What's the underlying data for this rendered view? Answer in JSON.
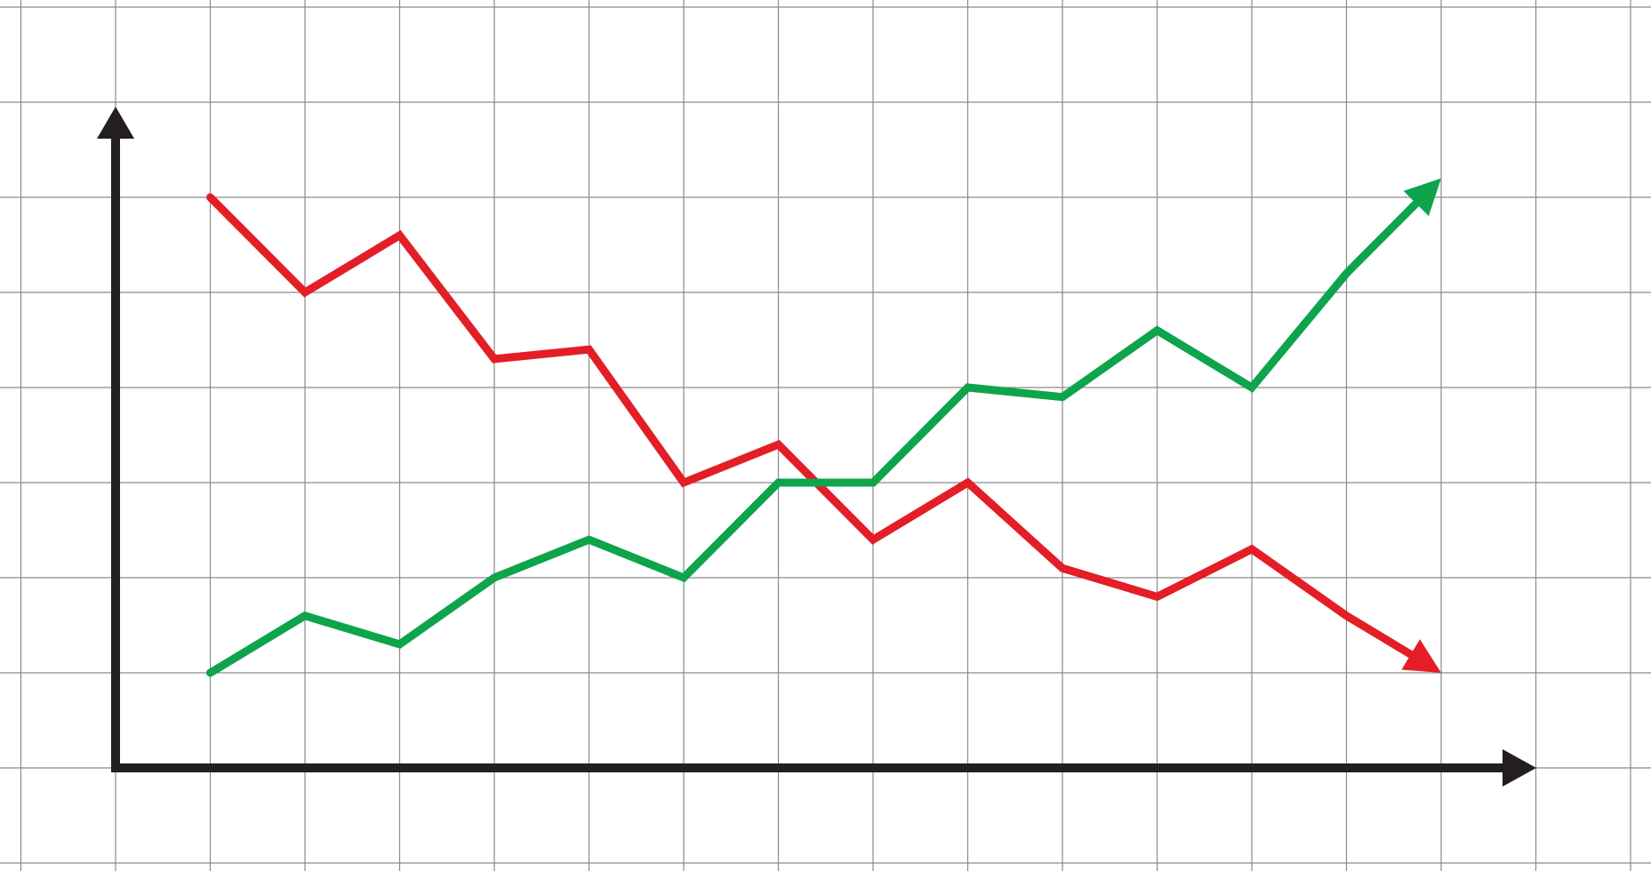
{
  "chart_data": {
    "type": "line",
    "x": [
      1,
      2,
      3,
      4,
      5,
      6,
      7,
      8,
      9,
      10,
      11,
      12,
      13,
      14
    ],
    "series": [
      {
        "color": "#e31e26",
        "values": [
          6.0,
          5.0,
          5.6,
          4.3,
          4.4,
          3.0,
          3.4,
          2.4,
          3.0,
          2.1,
          1.8,
          2.3,
          1.6,
          1.0
        ],
        "end_arrow": true
      },
      {
        "color": "#0ea44c",
        "values": [
          1.0,
          1.6,
          1.3,
          2.0,
          2.4,
          2.0,
          3.0,
          3.0,
          4.0,
          3.9,
          4.6,
          4.0,
          5.2,
          6.2
        ],
        "end_arrow": true
      }
    ],
    "xlim": [
      0,
      15
    ],
    "ylim": [
      0,
      7
    ],
    "grid": true,
    "axis_color": "#231f20",
    "grid_color": "#8a8a8a",
    "title": "",
    "xlabel": "",
    "ylabel": ""
  }
}
